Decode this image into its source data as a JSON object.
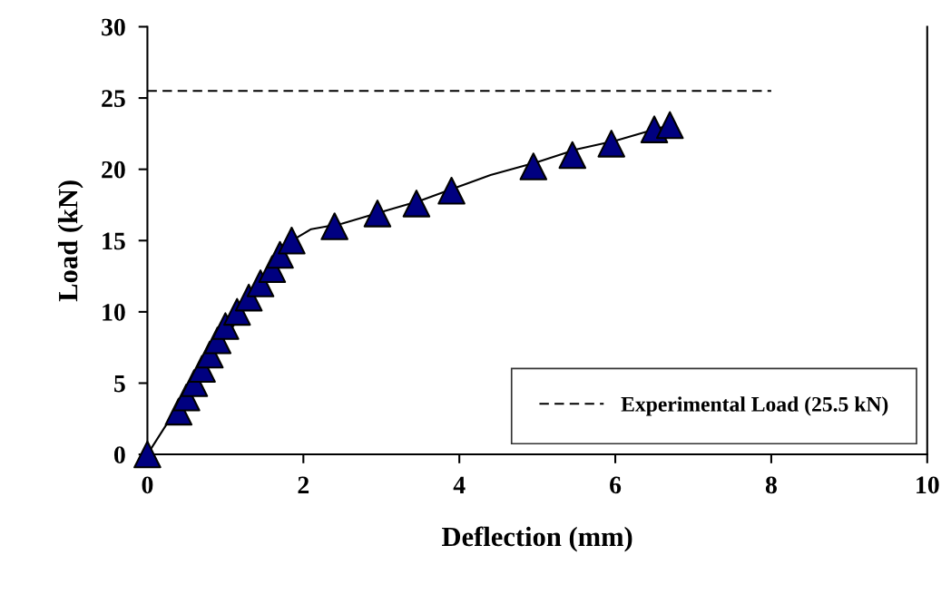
{
  "chart_data": {
    "type": "line",
    "xlabel": "Deflection (mm)",
    "ylabel": "Load (kN)",
    "xlim": [
      0,
      10
    ],
    "xticks": [
      0,
      2,
      4,
      6,
      8,
      10
    ],
    "ylim": [
      0,
      30
    ],
    "yticks": [
      0,
      5,
      10,
      15,
      20,
      25,
      30
    ],
    "grid": false,
    "legend": "bottom right",
    "series": [
      {
        "color": "#000000",
        "line_style": "solid",
        "marker": "none",
        "x": [
          0,
          0.35,
          1.85,
          2.1,
          2.5,
          3.0,
          3.5,
          4.0,
          4.4,
          5.0,
          5.5,
          6.0,
          6.5,
          6.7
        ],
        "values": [
          0,
          3,
          15,
          15.8,
          16.2,
          17,
          17.8,
          18.8,
          19.6,
          20.5,
          21.4,
          22,
          22.8,
          23.1
        ]
      },
      {
        "type": "scatter",
        "color": "#000080",
        "marker": "triangle",
        "x": [
          0,
          0.4,
          0.5,
          0.6,
          0.7,
          0.8,
          0.9,
          1.0,
          1.15,
          1.3,
          1.45,
          1.6,
          1.7,
          1.85,
          2.4,
          2.95,
          3.45,
          3.9,
          4.95,
          5.45,
          5.95,
          6.5,
          6.7
        ],
        "values": [
          0,
          3,
          4,
          5,
          6,
          7,
          8,
          9,
          10,
          11,
          12,
          13,
          14,
          15,
          16,
          16.9,
          17.6,
          18.5,
          20.2,
          21,
          21.8,
          22.8,
          23.1
        ]
      },
      {
        "name": "Experimental Load (25.5 kN)",
        "color": "#000000",
        "line_style": "dashed",
        "marker": "none",
        "x": [
          0,
          8
        ],
        "values": [
          25.5,
          25.5
        ]
      }
    ]
  }
}
